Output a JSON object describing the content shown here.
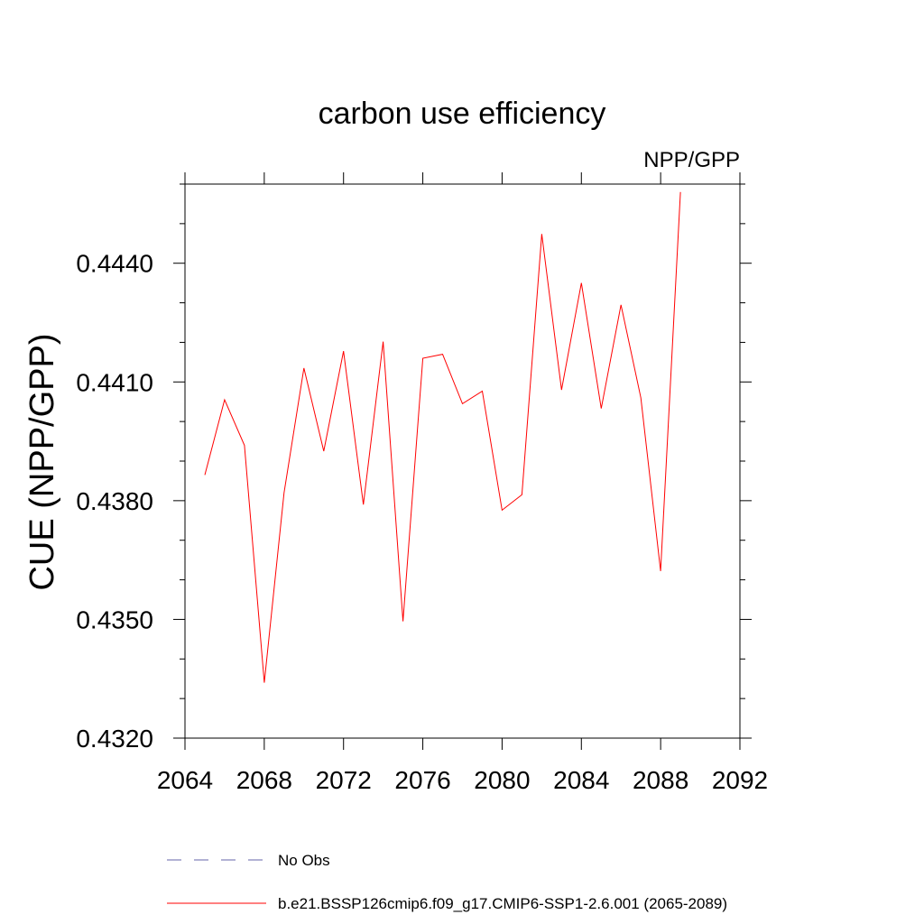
{
  "chart_data": {
    "type": "line",
    "title": "carbon use efficiency",
    "subtitle": "NPP/GPP",
    "xlabel": "",
    "ylabel": "CUE  (NPP/GPP)",
    "xlim": [
      2064,
      2092
    ],
    "ylim": [
      0.432,
      0.446
    ],
    "xticks": [
      2064,
      2068,
      2072,
      2076,
      2080,
      2084,
      2088,
      2092
    ],
    "xtick_labels": [
      "2064",
      "2068",
      "2072",
      "2076",
      "2080",
      "2084",
      "2088",
      "2092"
    ],
    "yticks": [
      0.432,
      0.435,
      0.438,
      0.441,
      0.444
    ],
    "ytick_labels": [
      "0.4320",
      "0.4350",
      "0.4380",
      "0.4410",
      "0.4440"
    ],
    "series": [
      {
        "name": "b.e21.BSSP126cmip6.f09_g17.CMIP6-SSP1-2.6.001 (2065-2089)",
        "color": "#ff0000",
        "style": "solid",
        "x": [
          2065,
          2066,
          2067,
          2068,
          2069,
          2070,
          2071,
          2072,
          2073,
          2074,
          2075,
          2076,
          2077,
          2078,
          2079,
          2080,
          2081,
          2082,
          2083,
          2084,
          2085,
          2086,
          2087,
          2088,
          2089
        ],
        "values": [
          0.43865,
          0.44055,
          0.4394,
          0.4334,
          0.4382,
          0.44135,
          0.43925,
          0.44178,
          0.4379,
          0.44202,
          0.43495,
          0.4416,
          0.4417,
          0.44045,
          0.44077,
          0.43776,
          0.43815,
          0.44474,
          0.4408,
          0.4435,
          0.44033,
          0.44295,
          0.4406,
          0.43622,
          0.4458
        ]
      }
    ],
    "legend": [
      {
        "label": "No Obs",
        "color": "#6666aa",
        "style": "dashed"
      },
      {
        "label": "b.e21.BSSP126cmip6.f09_g17.CMIP6-SSP1-2.6.001 (2065-2089)",
        "color": "#ff0000",
        "style": "solid"
      }
    ]
  }
}
